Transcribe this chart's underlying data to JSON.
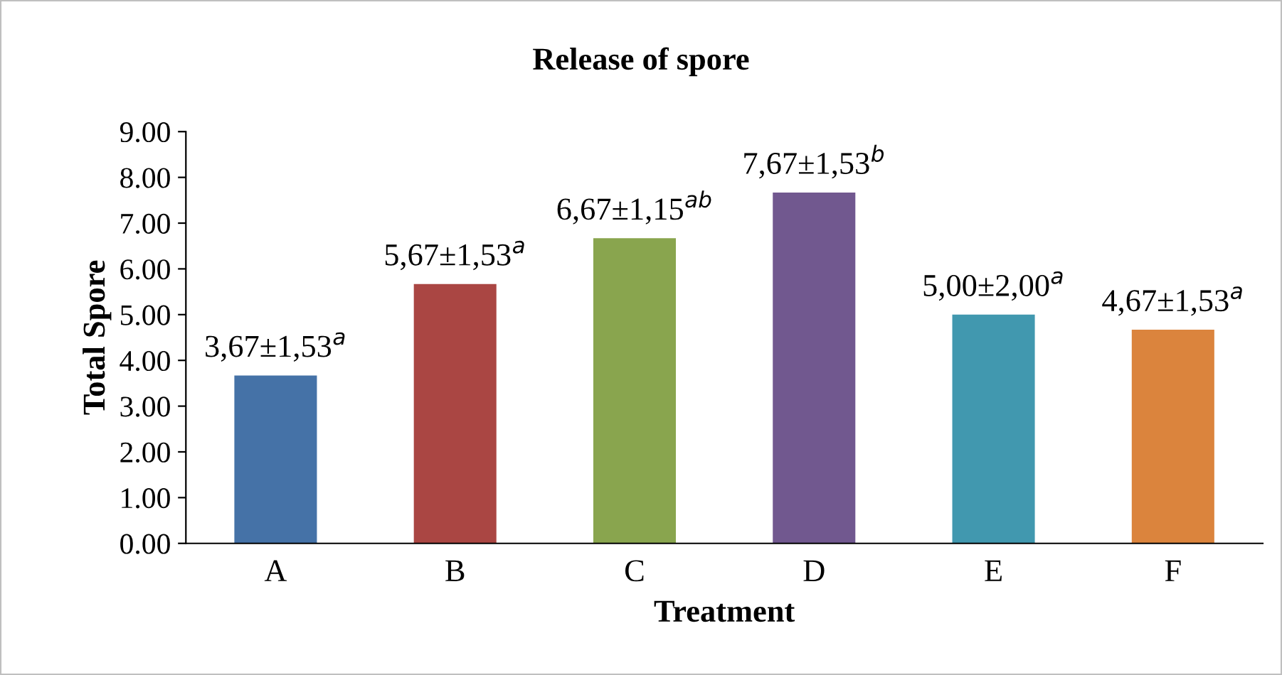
{
  "chart_data": {
    "type": "bar",
    "title": "Release of spore",
    "xlabel": "Treatment",
    "ylabel": "Total Spore",
    "categories": [
      "A",
      "B",
      "C",
      "D",
      "E",
      "F"
    ],
    "values": [
      3.67,
      5.67,
      6.67,
      7.67,
      5.0,
      4.67
    ],
    "colors": [
      "#4572a7",
      "#aa4643",
      "#89a54e",
      "#71588f",
      "#4198af",
      "#db843d"
    ],
    "value_labels": [
      "3,67±1,53$^{a}$",
      "5,67±1,53$^{a}$",
      "6,67±1,15$^{ab}$",
      "7,67±1,53$^{b}$",
      "5,00±2,00$^{a}$",
      "4,67±1,53$^{a}$"
    ],
    "ylim": [
      0,
      9
    ],
    "yticks": [
      {
        "value": 0,
        "label": "0.00"
      },
      {
        "value": 1,
        "label": "1.00"
      },
      {
        "value": 2,
        "label": "2.00"
      },
      {
        "value": 3,
        "label": "3.00"
      },
      {
        "value": 4,
        "label": "4.00"
      },
      {
        "value": 5,
        "label": "5.00"
      },
      {
        "value": 6,
        "label": "6.00"
      },
      {
        "value": 7,
        "label": "7.00"
      },
      {
        "value": 8,
        "label": "8.00"
      },
      {
        "value": 9,
        "label": "9.00"
      }
    ],
    "grid": false,
    "legend": false
  }
}
